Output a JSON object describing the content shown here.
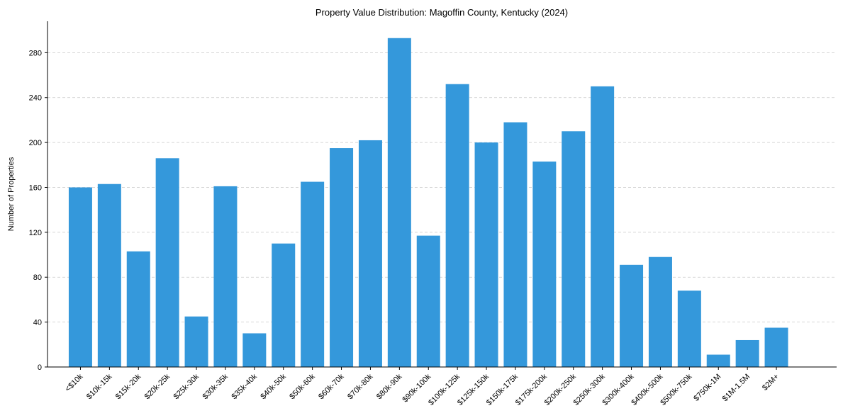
{
  "chart_data": {
    "type": "bar",
    "title": "Property Value Distribution: Magoffin County, Kentucky (2024)",
    "xlabel": "",
    "ylabel": "Number of Properties",
    "ylim": [
      0,
      308
    ],
    "yticks": [
      0,
      40,
      80,
      120,
      160,
      200,
      240,
      280
    ],
    "grid": true,
    "bar_color": "#3498db",
    "categories": [
      "<$10k",
      "$10k-15k",
      "$15k-20k",
      "$20k-25k",
      "$25k-30k",
      "$30k-35k",
      "$35k-40k",
      "$40k-50k",
      "$50k-60k",
      "$60k-70k",
      "$70k-80k",
      "$80k-90k",
      "$90k-100k",
      "$100k-125k",
      "$125k-150k",
      "$150k-175k",
      "$175k-200k",
      "$200k-250k",
      "$250k-300k",
      "$300k-400k",
      "$400k-500k",
      "$500k-750k",
      "$750k-1M",
      "$1M-1.5M",
      "$2M+"
    ],
    "values": [
      160,
      163,
      103,
      186,
      45,
      161,
      30,
      110,
      165,
      195,
      202,
      293,
      117,
      252,
      200,
      218,
      183,
      210,
      250,
      91,
      98,
      68,
      11,
      24,
      35
    ]
  }
}
